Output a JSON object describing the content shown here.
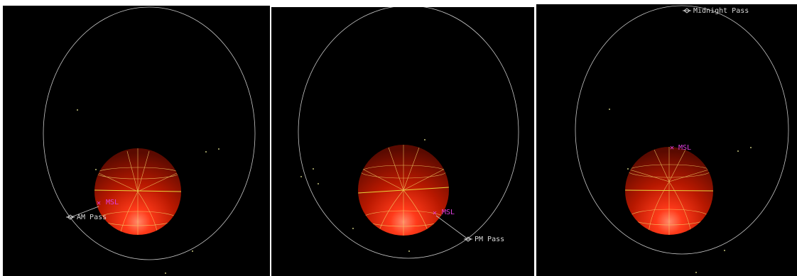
{
  "colors": {
    "background": "#000000",
    "orbit": "#c8c8c8",
    "grid": "#f3d36a",
    "equator": "#e6d23c",
    "site_marker": "#e040e0",
    "planet_dark": "#5a0a00",
    "planet_light": "#ff3a1a",
    "star": "#bfbf7a"
  },
  "panels": [
    {
      "id": "am",
      "site_label": "MSL",
      "pass_label": "AM Pass",
      "pass_icon": "spacecraft-icon"
    },
    {
      "id": "pm",
      "site_label": "MSL",
      "pass_label": "PM Pass",
      "pass_icon": "spacecraft-icon"
    },
    {
      "id": "midnight",
      "site_label": "MSL",
      "pass_label": "Midnight Pass",
      "pass_icon": "spacecraft-icon"
    }
  ]
}
